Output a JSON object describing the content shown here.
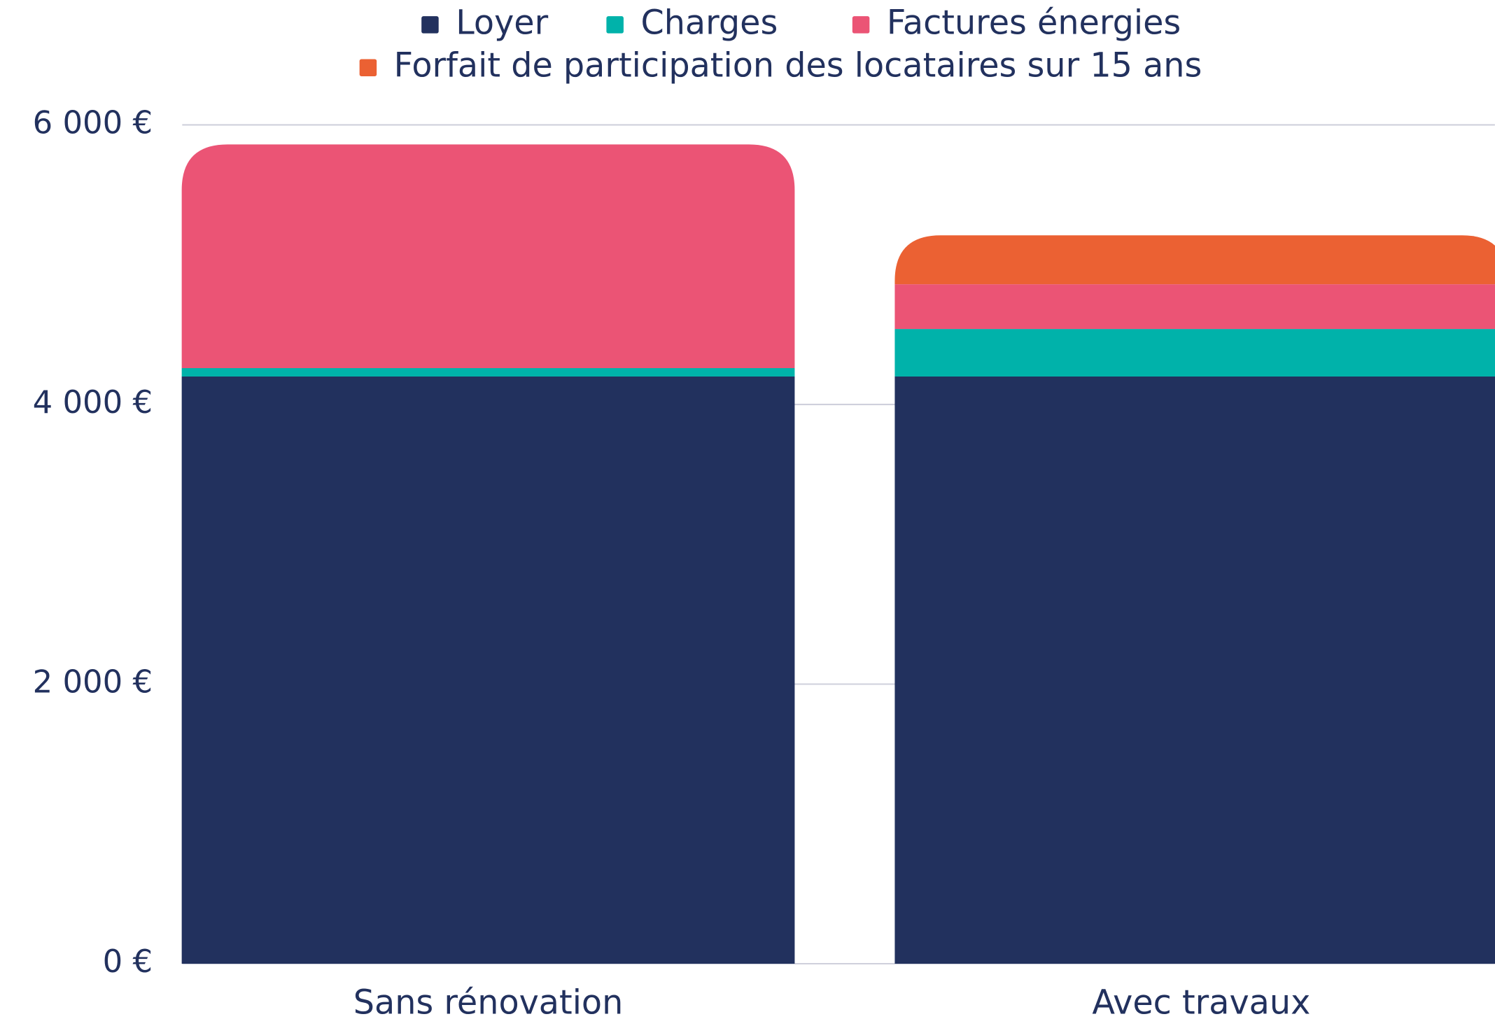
{
  "chart_data": {
    "type": "stacked_bar",
    "categories": [
      "Sans rénovation",
      "Avec travaux"
    ],
    "series": [
      {
        "name": "Loyer",
        "color": "#22315e",
        "values": [
          4200,
          4200
        ]
      },
      {
        "name": "Charges",
        "color": "#00b2aa",
        "values": [
          60,
          340
        ]
      },
      {
        "name": "Factures énergies",
        "color": "#eb5475",
        "values": [
          1600,
          320
        ]
      },
      {
        "name": "Forfait de participation des locataires sur 15 ans",
        "color": "#eb6133",
        "values": [
          0,
          350
        ]
      }
    ],
    "ylim": [
      0,
      6000
    ],
    "yticks": [
      {
        "value": 0,
        "label": "0 €"
      },
      {
        "value": 2000,
        "label": "2 000 €"
      },
      {
        "value": 4000,
        "label": "4 000 €"
      },
      {
        "value": 6000,
        "label": "6 000 €"
      }
    ],
    "grid": true
  }
}
